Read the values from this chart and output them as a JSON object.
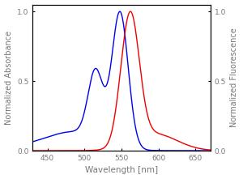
{
  "xlabel": "Wavelength [nm]",
  "ylabel_left": "Normalized Absorbance",
  "ylabel_right": "Normalized Fluorescence",
  "xlim": [
    430,
    670
  ],
  "ylim": [
    0.0,
    1.05
  ],
  "yticks": [
    0.0,
    0.5,
    1.0
  ],
  "xticks": [
    450,
    500,
    550,
    600,
    650
  ],
  "blue_color": "#0000ee",
  "red_color": "#ee0000",
  "bg_color": "#ffffff",
  "spine_color": "#000000",
  "label_color": "#777777",
  "figsize": [
    3.0,
    2.21
  ],
  "dpi": 100
}
